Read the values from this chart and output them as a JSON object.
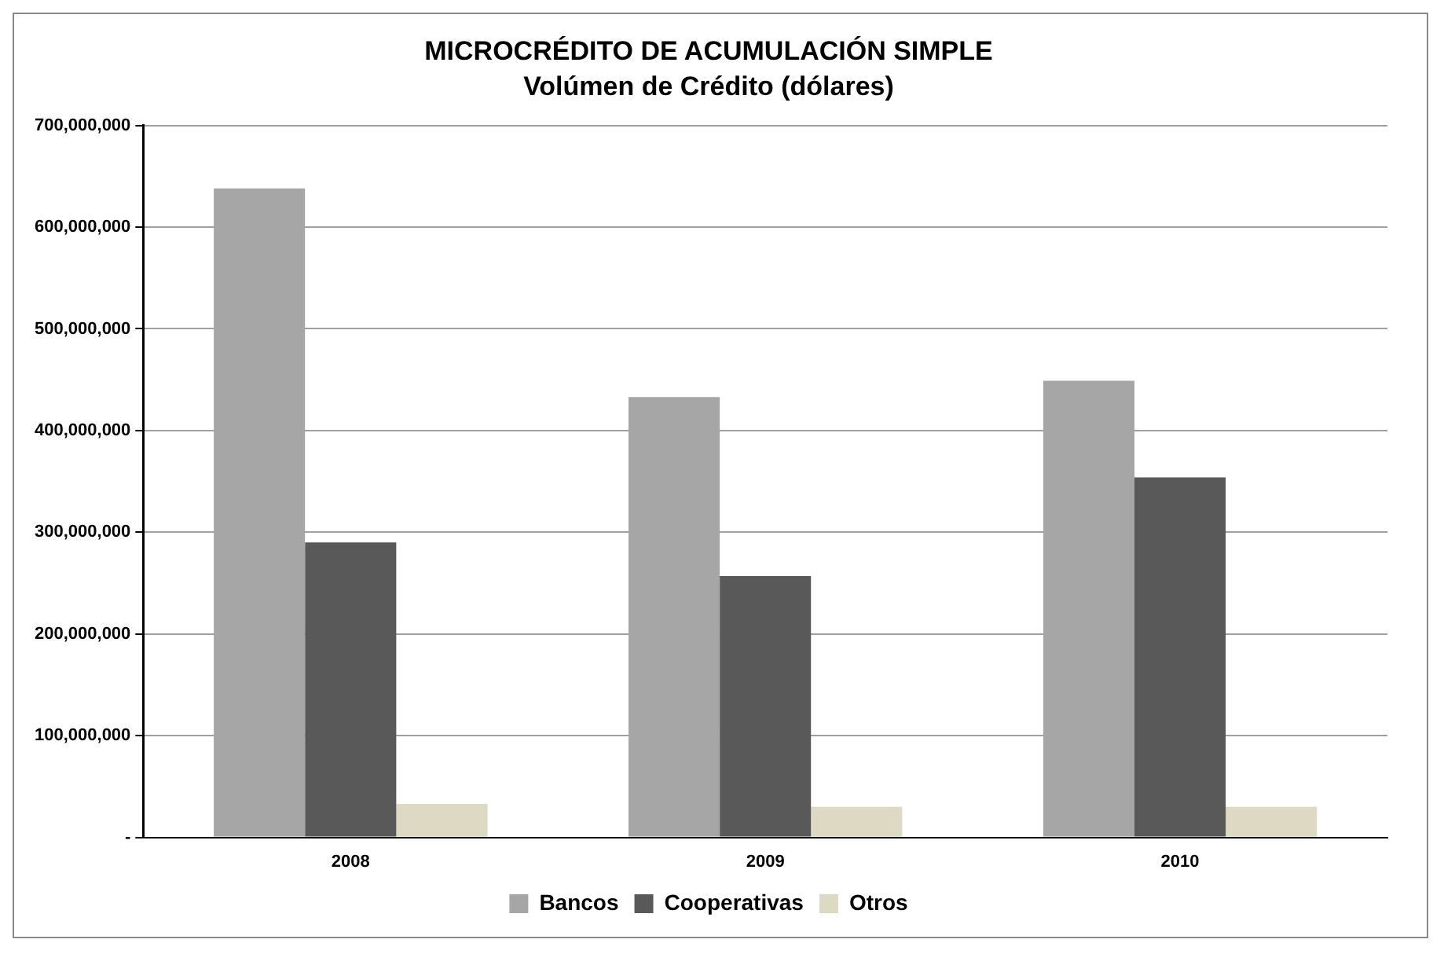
{
  "chart_data": {
    "type": "bar",
    "title": "MICROCRÉDITO DE ACUMULACIÓN SIMPLE",
    "subtitle": "Volúmen de Crédito (dólares)",
    "categories": [
      "2008",
      "2009",
      "2010"
    ],
    "series": [
      {
        "name": "Bancos",
        "color": "#a6a6a6",
        "values": [
          638000000,
          433000000,
          449000000
        ]
      },
      {
        "name": "Cooperativas",
        "color": "#595959",
        "values": [
          290000000,
          257000000,
          354000000
        ]
      },
      {
        "name": "Otros",
        "color": "#ddd9c3",
        "values": [
          33000000,
          30000000,
          30000000
        ]
      }
    ],
    "ylim": [
      0,
      700000000
    ],
    "yticks": [
      {
        "value": 0,
        "label": "-"
      },
      {
        "value": 100000000,
        "label": "100,000,000"
      },
      {
        "value": 200000000,
        "label": "200,000,000"
      },
      {
        "value": 300000000,
        "label": "300,000,000"
      },
      {
        "value": 400000000,
        "label": "400,000,000"
      },
      {
        "value": 500000000,
        "label": "500,000,000"
      },
      {
        "value": 600000000,
        "label": "600,000,000"
      },
      {
        "value": 700000000,
        "label": "700,000,000"
      }
    ],
    "grid": "y",
    "legend": "bottom"
  }
}
